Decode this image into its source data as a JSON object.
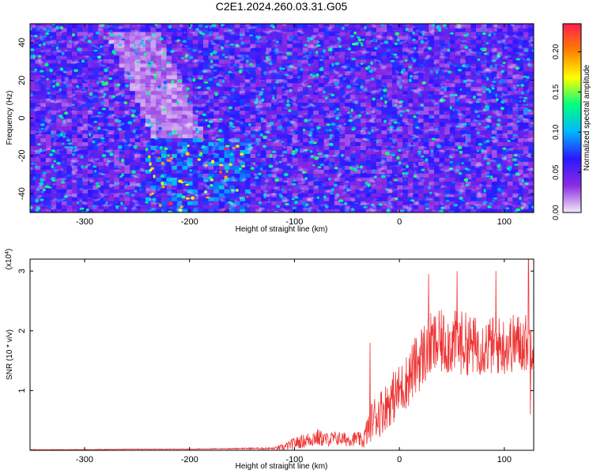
{
  "figure": {
    "title": "C2E1.2024.260.03.31.G05"
  },
  "chart_data": [
    {
      "type": "heatmap",
      "title": "C2E1.2024.260.03.31.G05",
      "xlabel": "Height of straight line (km)",
      "ylabel": "Frequency (Hz)",
      "xlim": [
        -352,
        128
      ],
      "ylim": [
        -50,
        50
      ],
      "xticks": [
        -300,
        -200,
        -100,
        0,
        100
      ],
      "yticks": [
        -40,
        -20,
        0,
        20,
        40
      ],
      "grid": false,
      "colorbar": {
        "label": "Normalized spectral amplitude",
        "range": [
          0.0,
          0.235
        ],
        "ticks": [
          "0.00",
          "0.05",
          "0.10",
          "0.15",
          "0.20"
        ],
        "colors": [
          "#f4eaf8",
          "#8a2be2",
          "#2a18ff",
          "#00b7ff",
          "#00ff80",
          "#ffff00",
          "#ff7f00",
          "#ff1f4f"
        ]
      },
      "features": {
        "background_level": 0.05,
        "high_amplitude_band": {
          "x_range": [
            -240,
            -140
          ],
          "y_range": [
            -50,
            -10
          ],
          "peak": 0.2
        },
        "low_amplitude_streak": {
          "x_range": [
            -270,
            -190
          ],
          "y_range": [
            -10,
            45
          ],
          "level": 0.01
        }
      }
    },
    {
      "type": "line",
      "xlabel": "Height of straight line (km)",
      "ylabel": "SNR (10 * v/v)",
      "scale_label": "(x10",
      "scale_exponent": "4",
      "xlim": [
        -352,
        128
      ],
      "ylim": [
        0,
        3.2
      ],
      "xticks": [
        -300,
        -200,
        -100,
        0,
        100
      ],
      "yticks": [
        1,
        2,
        3
      ],
      "grid": false,
      "series": [
        {
          "color": "#ee3333",
          "x": [
            -352,
            -300,
            -250,
            -200,
            -150,
            -120,
            -110,
            -100,
            -90,
            -80,
            -70,
            -60,
            -50,
            -40,
            -35,
            -30,
            -25,
            -20,
            -15,
            -10,
            -5,
            0,
            5,
            10,
            15,
            20,
            25,
            30,
            40,
            50,
            60,
            70,
            80,
            90,
            100,
            110,
            120,
            128
          ],
          "y": [
            0.01,
            0.01,
            0.02,
            0.02,
            0.03,
            0.03,
            0.05,
            0.12,
            0.16,
            0.22,
            0.18,
            0.2,
            0.18,
            0.2,
            0.14,
            0.35,
            0.55,
            0.6,
            0.7,
            0.8,
            0.9,
            1.0,
            1.1,
            1.25,
            1.4,
            1.55,
            1.65,
            1.75,
            1.8,
            1.8,
            1.8,
            1.75,
            1.75,
            1.75,
            1.75,
            1.8,
            1.8,
            1.85
          ],
          "noise_amplitude": [
            0.005,
            0.005,
            0.005,
            0.005,
            0.01,
            0.02,
            0.06,
            0.1,
            0.12,
            0.16,
            0.12,
            0.12,
            0.12,
            0.12,
            0.12,
            0.28,
            0.35,
            0.4,
            0.4,
            0.4,
            0.45,
            0.45,
            0.45,
            0.5,
            0.5,
            0.55,
            0.55,
            0.55,
            0.55,
            0.55,
            0.55,
            0.5,
            0.5,
            0.5,
            0.5,
            0.5,
            0.5,
            0.5
          ],
          "spikes": [
            {
              "x": -28,
              "y": 1.8
            },
            {
              "x": 28,
              "y": 2.95
            },
            {
              "x": 55,
              "y": 3.0
            },
            {
              "x": 92,
              "y": 3.0
            },
            {
              "x": 123,
              "y": 3.2
            },
            {
              "x": 125,
              "y": 0.6
            }
          ]
        }
      ]
    }
  ]
}
